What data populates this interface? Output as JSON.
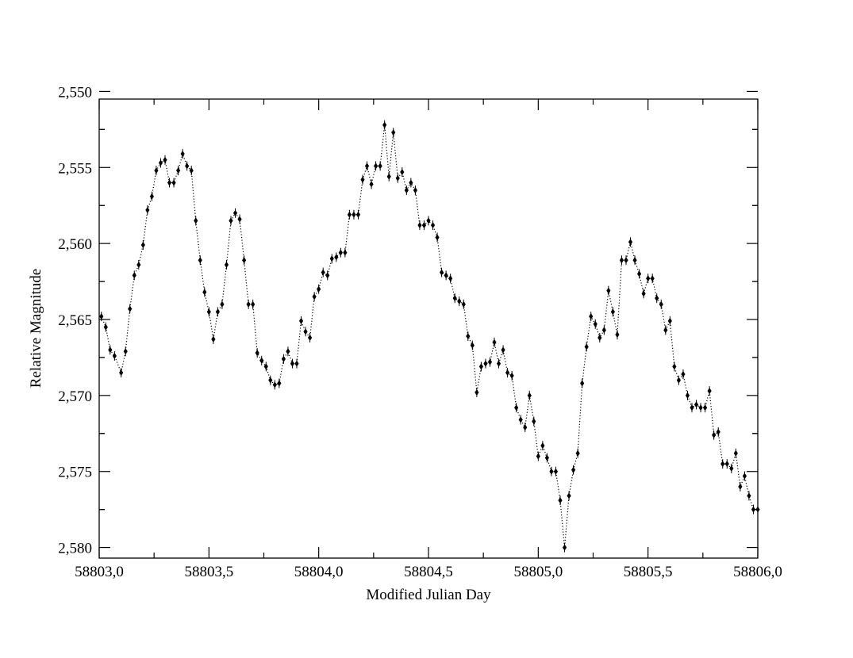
{
  "chart_data": {
    "type": "scatter",
    "title": "",
    "xlabel": "Modified Julian Day",
    "ylabel": "Relative Magnitude",
    "xlim": [
      58803.0,
      58806.0
    ],
    "ylim": [
      2.5505,
      2.5807
    ],
    "y_inverted": true,
    "grid": false,
    "legend": "none",
    "connect_points": "dotted",
    "marker": "filled-diamond-with-errorbars",
    "x_ticks": [
      58803.0,
      58803.5,
      58804.0,
      58804.5,
      58805.0,
      58805.5,
      58806.0
    ],
    "x_tick_labels": [
      "58803,0",
      "58803,5",
      "58804,0",
      "58804,5",
      "58805,0",
      "58805,5",
      "58806,0"
    ],
    "y_ticks": [
      2.55,
      2.555,
      2.56,
      2.565,
      2.57,
      2.575,
      2.58
    ],
    "y_tick_labels": [
      "2,550",
      "2,555",
      "2,560",
      "2,565",
      "2,570",
      "2,575",
      "2,580"
    ],
    "series": [
      {
        "color": "#000000",
        "points": [
          [
            58803.01,
            2.5648
          ],
          [
            58803.03,
            2.5655
          ],
          [
            58803.05,
            2.567
          ],
          [
            58803.07,
            2.5674
          ],
          [
            58803.1,
            2.5685
          ],
          [
            58803.12,
            2.5671
          ],
          [
            58803.14,
            2.5643
          ],
          [
            58803.16,
            2.5621
          ],
          [
            58803.18,
            2.5614
          ],
          [
            58803.2,
            2.5601
          ],
          [
            58803.22,
            2.5578
          ],
          [
            58803.24,
            2.5569
          ],
          [
            58803.26,
            2.5552
          ],
          [
            58803.28,
            2.5547
          ],
          [
            58803.3,
            2.5545
          ],
          [
            58803.32,
            2.556
          ],
          [
            58803.34,
            2.556
          ],
          [
            58803.36,
            2.5552
          ],
          [
            58803.38,
            2.5541
          ],
          [
            58803.4,
            2.5549
          ],
          [
            58803.42,
            2.5552
          ],
          [
            58803.44,
            2.5585
          ],
          [
            58803.46,
            2.5611
          ],
          [
            58803.48,
            2.5632
          ],
          [
            58803.5,
            2.5645
          ],
          [
            58803.52,
            2.5663
          ],
          [
            58803.54,
            2.5645
          ],
          [
            58803.56,
            2.564
          ],
          [
            58803.58,
            2.5614
          ],
          [
            58803.6,
            2.5585
          ],
          [
            58803.62,
            2.558
          ],
          [
            58803.64,
            2.5584
          ],
          [
            58803.66,
            2.5611
          ],
          [
            58803.68,
            2.564
          ],
          [
            58803.7,
            2.564
          ],
          [
            58803.72,
            2.5672
          ],
          [
            58803.74,
            2.5677
          ],
          [
            58803.76,
            2.5681
          ],
          [
            58803.78,
            2.569
          ],
          [
            58803.8,
            2.5693
          ],
          [
            58803.82,
            2.5692
          ],
          [
            58803.84,
            2.5676
          ],
          [
            58803.86,
            2.5671
          ],
          [
            58803.88,
            2.5679
          ],
          [
            58803.9,
            2.5679
          ],
          [
            58803.92,
            2.5651
          ],
          [
            58803.94,
            2.5658
          ],
          [
            58803.96,
            2.5662
          ],
          [
            58803.98,
            2.5635
          ],
          [
            58804.0,
            2.563
          ],
          [
            58804.02,
            2.5619
          ],
          [
            58804.04,
            2.5621
          ],
          [
            58804.06,
            2.561
          ],
          [
            58804.08,
            2.5609
          ],
          [
            58804.1,
            2.5606
          ],
          [
            58804.12,
            2.5606
          ],
          [
            58804.14,
            2.5581
          ],
          [
            58804.16,
            2.5581
          ],
          [
            58804.18,
            2.5581
          ],
          [
            58804.2,
            2.5558
          ],
          [
            58804.22,
            2.5549
          ],
          [
            58804.24,
            2.5561
          ],
          [
            58804.26,
            2.5549
          ],
          [
            58804.28,
            2.5549
          ],
          [
            58804.3,
            2.5522
          ],
          [
            58804.32,
            2.5556
          ],
          [
            58804.34,
            2.5527
          ],
          [
            58804.36,
            2.5557
          ],
          [
            58804.38,
            2.5553
          ],
          [
            58804.4,
            2.5565
          ],
          [
            58804.42,
            2.556
          ],
          [
            58804.44,
            2.5565
          ],
          [
            58804.46,
            2.5588
          ],
          [
            58804.48,
            2.5588
          ],
          [
            58804.5,
            2.5585
          ],
          [
            58804.52,
            2.5588
          ],
          [
            58804.54,
            2.5596
          ],
          [
            58804.56,
            2.5619
          ],
          [
            58804.58,
            2.5621
          ],
          [
            58804.6,
            2.5623
          ],
          [
            58804.62,
            2.5636
          ],
          [
            58804.64,
            2.5638
          ],
          [
            58804.66,
            2.564
          ],
          [
            58804.68,
            2.5661
          ],
          [
            58804.7,
            2.5667
          ],
          [
            58804.72,
            2.5698
          ],
          [
            58804.74,
            2.5681
          ],
          [
            58804.76,
            2.5679
          ],
          [
            58804.78,
            2.5678
          ],
          [
            58804.8,
            2.5665
          ],
          [
            58804.82,
            2.5679
          ],
          [
            58804.84,
            2.567
          ],
          [
            58804.86,
            2.5685
          ],
          [
            58804.88,
            2.5687
          ],
          [
            58804.9,
            2.5708
          ],
          [
            58804.92,
            2.5716
          ],
          [
            58804.94,
            2.5721
          ],
          [
            58804.96,
            2.57
          ],
          [
            58804.98,
            2.5717
          ],
          [
            58805.0,
            2.574
          ],
          [
            58805.02,
            2.5733
          ],
          [
            58805.04,
            2.5741
          ],
          [
            58805.06,
            2.575
          ],
          [
            58805.08,
            2.575
          ],
          [
            58805.1,
            2.5769
          ],
          [
            58805.12,
            2.58
          ],
          [
            58805.14,
            2.5766
          ],
          [
            58805.16,
            2.5749
          ],
          [
            58805.18,
            2.5738
          ],
          [
            58805.2,
            2.5692
          ],
          [
            58805.22,
            2.5668
          ],
          [
            58805.24,
            2.5648
          ],
          [
            58805.26,
            2.5653
          ],
          [
            58805.28,
            2.5662
          ],
          [
            58805.3,
            2.5657
          ],
          [
            58805.32,
            2.5631
          ],
          [
            58805.34,
            2.5645
          ],
          [
            58805.36,
            2.566
          ],
          [
            58805.38,
            2.5611
          ],
          [
            58805.4,
            2.5611
          ],
          [
            58805.42,
            2.5599
          ],
          [
            58805.44,
            2.5611
          ],
          [
            58805.46,
            2.562
          ],
          [
            58805.48,
            2.5633
          ],
          [
            58805.5,
            2.5623
          ],
          [
            58805.52,
            2.5623
          ],
          [
            58805.54,
            2.5636
          ],
          [
            58805.56,
            2.564
          ],
          [
            58805.58,
            2.5657
          ],
          [
            58805.6,
            2.5651
          ],
          [
            58805.62,
            2.5681
          ],
          [
            58805.64,
            2.569
          ],
          [
            58805.66,
            2.5686
          ],
          [
            58805.68,
            2.57
          ],
          [
            58805.7,
            2.5708
          ],
          [
            58805.72,
            2.5706
          ],
          [
            58805.74,
            2.5708
          ],
          [
            58805.76,
            2.5708
          ],
          [
            58805.78,
            2.5697
          ],
          [
            58805.8,
            2.5726
          ],
          [
            58805.82,
            2.5724
          ],
          [
            58805.84,
            2.5745
          ],
          [
            58805.86,
            2.5745
          ],
          [
            58805.88,
            2.5748
          ],
          [
            58805.9,
            2.5738
          ],
          [
            58805.92,
            2.576
          ],
          [
            58805.94,
            2.5753
          ],
          [
            58805.96,
            2.5766
          ],
          [
            58805.98,
            2.5775
          ],
          [
            58806.0,
            2.5775
          ]
        ]
      }
    ]
  }
}
